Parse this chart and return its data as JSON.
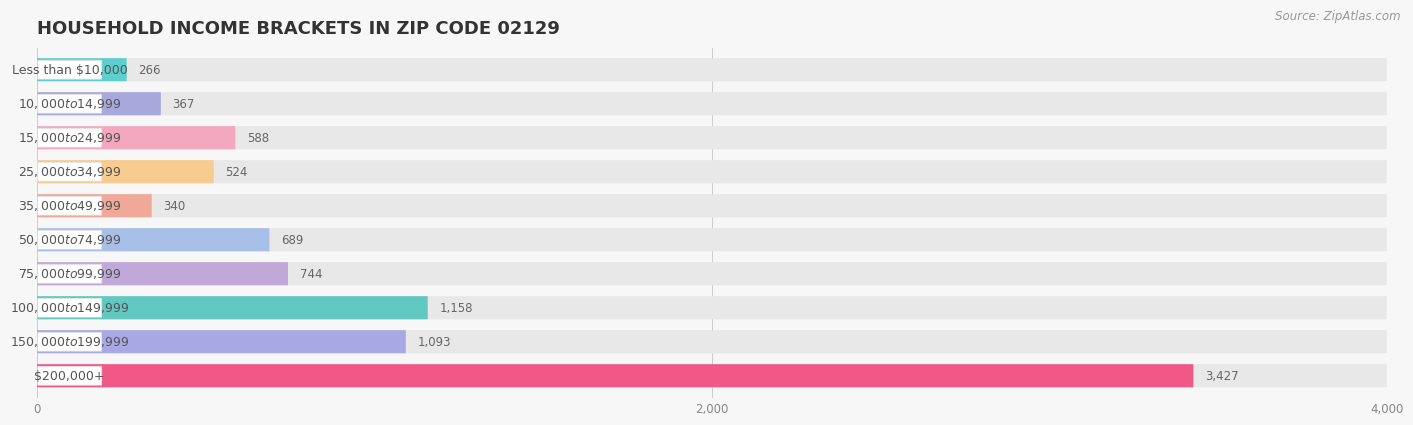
{
  "title": "HOUSEHOLD INCOME BRACKETS IN ZIP CODE 02129",
  "source": "Source: ZipAtlas.com",
  "categories": [
    "Less than $10,000",
    "$10,000 to $14,999",
    "$15,000 to $24,999",
    "$25,000 to $34,999",
    "$35,000 to $49,999",
    "$50,000 to $74,999",
    "$75,000 to $99,999",
    "$100,000 to $149,999",
    "$150,000 to $199,999",
    "$200,000+"
  ],
  "values": [
    266,
    367,
    588,
    524,
    340,
    689,
    744,
    1158,
    1093,
    3427
  ],
  "bar_colors": [
    "#5ecece",
    "#a8a8dc",
    "#f4a8c0",
    "#f8cc90",
    "#f0a898",
    "#a8c0e8",
    "#c0a8d8",
    "#60c8c0",
    "#a8a8e4",
    "#f05888"
  ],
  "background_color": "#f7f7f7",
  "bar_bg_color": "#e8e8e8",
  "xlim": [
    0,
    4000
  ],
  "xticks": [
    0,
    2000,
    4000
  ],
  "title_fontsize": 13,
  "label_fontsize": 9,
  "value_fontsize": 8.5,
  "source_fontsize": 8.5
}
